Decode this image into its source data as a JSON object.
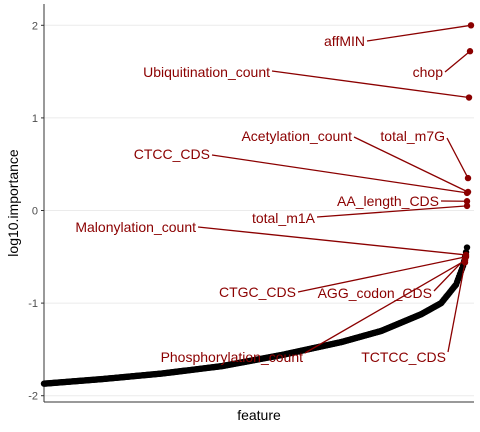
{
  "chart_data": {
    "type": "scatter",
    "title": "",
    "xlabel": "feature",
    "ylabel": "log10.importance",
    "n_points": 430,
    "ylim": [
      -2.05,
      2.15
    ],
    "yticks": [
      2,
      1,
      0,
      -1,
      -2
    ],
    "grid": true,
    "colors": {
      "background": "#ffffff",
      "grid": "#ebebeb",
      "axis": "#333333",
      "tick_text": "#4d4d4d",
      "point": "#000000",
      "highlight": "#8b0000"
    },
    "background_curve": {
      "description_points": [
        {
          "rank": 1,
          "y": -1.87
        },
        {
          "rank": 60,
          "y": -1.82
        },
        {
          "rank": 120,
          "y": -1.76
        },
        {
          "rank": 180,
          "y": -1.68
        },
        {
          "rank": 240,
          "y": -1.56
        },
        {
          "rank": 300,
          "y": -1.42
        },
        {
          "rank": 340,
          "y": -1.3
        },
        {
          "rank": 380,
          "y": -1.12
        },
        {
          "rank": 400,
          "y": -1.0
        },
        {
          "rank": 415,
          "y": -0.8
        },
        {
          "rank": 422,
          "y": -0.6
        },
        {
          "rank": 426,
          "y": -0.4
        }
      ]
    },
    "highlighted": [
      {
        "label": "affMIN",
        "rank": 430,
        "y": 2.0
      },
      {
        "label": "chop",
        "rank": 429,
        "y": 1.72
      },
      {
        "label": "Ubiquitination_count",
        "rank": 428,
        "y": 1.22
      },
      {
        "label": "total_m7G",
        "rank": 427,
        "y": 0.35
      },
      {
        "label": "Acetylation_count",
        "rank": 427,
        "y": 0.2
      },
      {
        "label": "CTCC_CDS",
        "rank": 426,
        "y": 0.19
      },
      {
        "label": "AA_length_CDS",
        "rank": 426,
        "y": 0.1
      },
      {
        "label": "total_m1A",
        "rank": 426,
        "y": 0.05
      },
      {
        "label": "Malonylation_count",
        "rank": 425,
        "y": -0.48
      },
      {
        "label": "CTGC_CDS",
        "rank": 425,
        "y": -0.5
      },
      {
        "label": "AGG_codon_CDS",
        "rank": 424,
        "y": -0.52
      },
      {
        "label": "Phosphorylation_count",
        "rank": 424,
        "y": -0.54
      },
      {
        "label": "TCTCC_CDS",
        "rank": 424,
        "y": -0.56
      }
    ]
  }
}
